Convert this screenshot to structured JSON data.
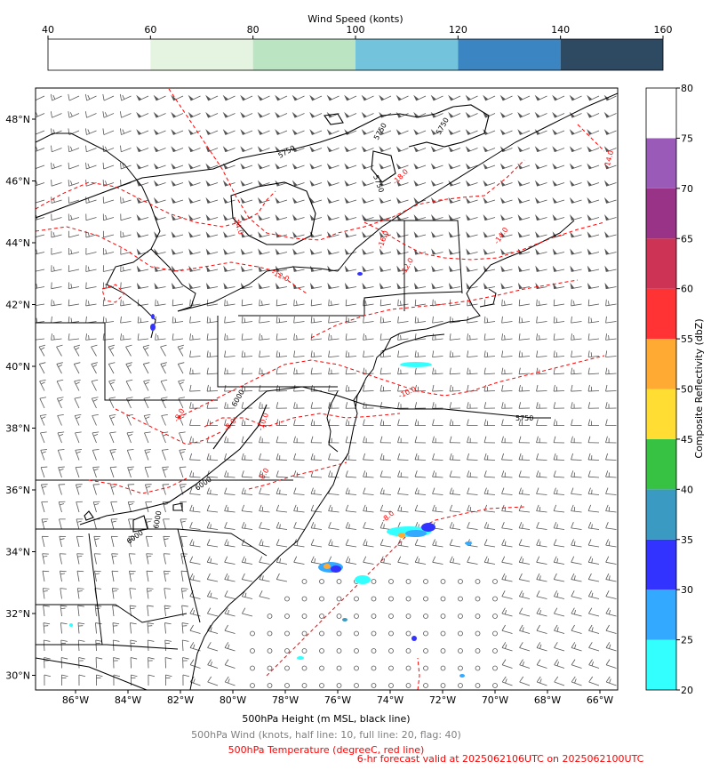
{
  "wind_colorbar": {
    "title": "Wind Speed (konts)",
    "ticks": [
      "40",
      "60",
      "80",
      "100",
      "120",
      "140",
      "160"
    ],
    "colors": [
      "#ffffff",
      "#e5f4e0",
      "#bbe4c3",
      "#72c3db",
      "#3b86c2",
      "#2e4a63"
    ]
  },
  "refl_colorbar": {
    "title": "Composite Reflectivity (dbZ)",
    "ticks": [
      "20",
      "25",
      "30",
      "35",
      "40",
      "45",
      "50",
      "55",
      "60",
      "65",
      "70",
      "75",
      "80"
    ],
    "colors": [
      "#33ffff",
      "#33aaff",
      "#3333ff",
      "#3a9ac2",
      "#38c244",
      "#ffdd33",
      "#ffaa33",
      "#ff3333",
      "#cc3355",
      "#993388",
      "#9a5bb8",
      "#ffffff"
    ]
  },
  "map": {
    "lon_labels": [
      "86°W",
      "84°W",
      "82°W",
      "80°W",
      "78°W",
      "76°W",
      "74°W",
      "72°W",
      "70°W",
      "68°W",
      "66°W"
    ],
    "lat_labels": [
      "48°N",
      "46°N",
      "44°N",
      "42°N",
      "40°N",
      "38°N",
      "36°N",
      "34°N",
      "32°N",
      "30°N"
    ],
    "height_contour_labels": [
      "5750",
      "5750",
      "5750",
      "5750",
      "5750",
      "6000",
      "6000",
      "6000",
      "6000"
    ],
    "temp_contour_labels": [
      "-18.0",
      "-16.0",
      "-14.0",
      "-14.0",
      "-14.0",
      "-12.0",
      "-12.0",
      "-10.0",
      "-10.0",
      "-8.0",
      "-8.0",
      "-8.0",
      "-8.0"
    ],
    "colors": {
      "height": "#000000",
      "temp": "#ff0000",
      "barb": "#555555",
      "coast": "#000000"
    }
  },
  "captions": {
    "height": "500hPa Height (m MSL, black line)",
    "wind": "500hPa Wind (knots, half line: 10, full line: 20, flag: 40)",
    "temp": "500hPa Temperature (degreeC, red line)",
    "valid": "6-hr forecast valid at 2025062106UTC on 2025062100UTC"
  }
}
